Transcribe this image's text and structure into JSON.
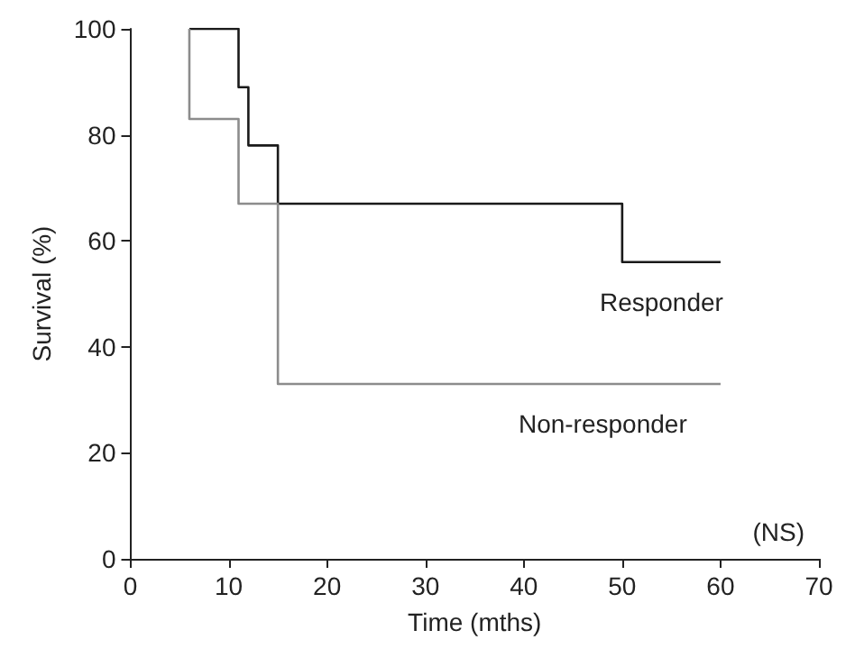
{
  "chart_data": {
    "type": "step",
    "xlabel": "Time (mths)",
    "ylabel": "Survival (%)",
    "series": [
      {
        "name": "Responder",
        "color": "#1a1a1a",
        "x": [
          6,
          11,
          12,
          15,
          50,
          60
        ],
        "values": [
          100,
          89,
          78,
          67,
          56,
          56
        ]
      },
      {
        "name": "Non-responder",
        "color": "#8c8c8c",
        "x": [
          6,
          6,
          11,
          15,
          60
        ],
        "values": [
          100,
          83,
          67,
          33,
          33
        ]
      }
    ],
    "xlim": [
      0,
      70
    ],
    "xticks": [
      0,
      10,
      20,
      30,
      40,
      50,
      60,
      70
    ],
    "ylim": [
      0,
      100
    ],
    "yticks": [
      0,
      20,
      40,
      60,
      80,
      100
    ],
    "grid": false,
    "legend": false,
    "marker": "none",
    "line_style": "solid",
    "annotations": [
      "(NS)"
    ]
  }
}
